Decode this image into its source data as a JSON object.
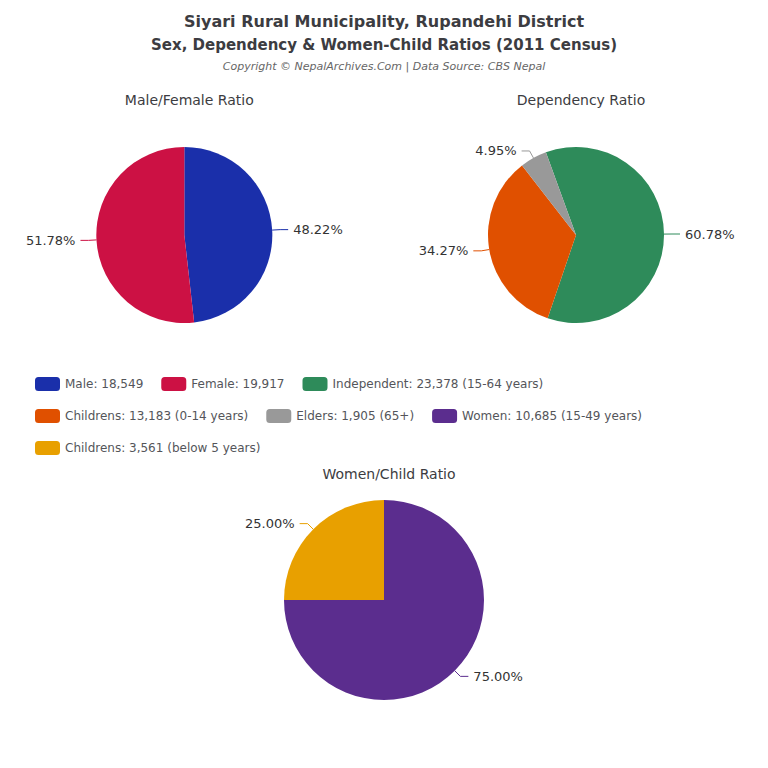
{
  "title": "Siyari Rural Municipality, Rupandehi District",
  "subtitle": "Sex, Dependency & Women-Child Ratios (2011 Census)",
  "annotations": [
    "Copyright © NepalArchives.Com | Data Source: CBS Nepal"
  ],
  "legend": "center",
  "chart_data": [
    {
      "type": "pie",
      "title": "Male/Female Ratio",
      "categories": [
        "Male: 18,549",
        "Female: 19,917"
      ],
      "values": [
        48.22,
        51.78
      ],
      "value_labels": [
        "48.22%",
        "51.78%"
      ],
      "colors": [
        "#1a2faa",
        "#cc1144"
      ],
      "data_labels": true
    },
    {
      "type": "pie",
      "title": "Dependency Ratio",
      "categories": [
        "Independent: 23,378 (15-64 years)",
        "Childrens: 13,183 (0-14 years)",
        "Elders: 1,905 (65+)"
      ],
      "values": [
        60.78,
        34.27,
        4.95
      ],
      "value_labels": [
        "60.78%",
        "34.27%",
        "4.95%"
      ],
      "colors": [
        "#2e8b5a",
        "#e05000",
        "#999999"
      ],
      "data_labels": true
    },
    {
      "type": "pie",
      "title": "Women/Child Ratio",
      "categories": [
        "Women: 10,685 (15-49 years)",
        "Childrens: 3,561 (below 5 years)"
      ],
      "values": [
        75.0,
        25.0
      ],
      "value_labels": [
        "75.00%",
        "25.00%"
      ],
      "colors": [
        "#5b2d8e",
        "#e8a000"
      ],
      "data_labels": true
    }
  ]
}
